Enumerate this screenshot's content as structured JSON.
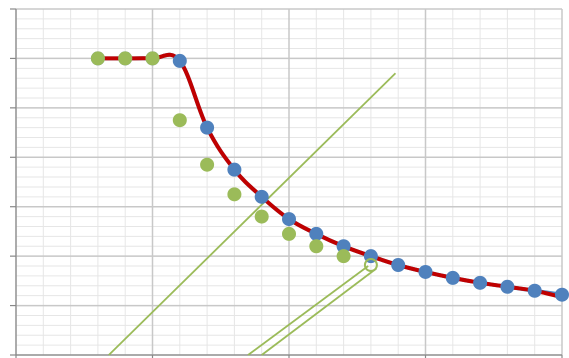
{
  "chart_data": {
    "type": "line",
    "title": "",
    "xlabel": "",
    "ylabel": "",
    "x_range": [
      0,
      20
    ],
    "y_range": [
      0,
      7
    ],
    "grid": {
      "major": true,
      "minor": true
    },
    "legend": "none",
    "tick_labels_shown": false,
    "series": [
      {
        "color": "#4f81bd",
        "style": "smooth-line-with-markers",
        "points": [
          [
            3,
            6
          ],
          [
            4,
            6
          ],
          [
            5,
            6
          ],
          [
            6,
            5.95
          ],
          [
            7,
            4.6
          ],
          [
            8,
            3.75
          ],
          [
            9,
            3.2
          ],
          [
            10,
            2.75
          ],
          [
            11,
            2.45
          ],
          [
            12,
            2.2
          ],
          [
            13,
            2.0
          ],
          [
            14,
            1.82
          ],
          [
            15,
            1.68
          ],
          [
            16,
            1.56
          ],
          [
            17,
            1.46
          ],
          [
            18,
            1.38
          ],
          [
            19,
            1.3
          ],
          [
            20,
            1.22
          ]
        ]
      },
      {
        "color": "#c00000",
        "style": "smooth-line",
        "points": [
          [
            3,
            6
          ],
          [
            4,
            6
          ],
          [
            5,
            6
          ],
          [
            6,
            5.95
          ],
          [
            7,
            4.6
          ],
          [
            8,
            3.75
          ],
          [
            9,
            3.2
          ],
          [
            10,
            2.75
          ],
          [
            11,
            2.45
          ],
          [
            12,
            2.2
          ],
          [
            13,
            2.0
          ],
          [
            14,
            1.82
          ],
          [
            15,
            1.68
          ],
          [
            16,
            1.56
          ],
          [
            17,
            1.46
          ],
          [
            18,
            1.38
          ],
          [
            19,
            1.3
          ],
          [
            20,
            1.17
          ]
        ]
      },
      {
        "color": "#9bbb59",
        "style": "markers",
        "points": [
          [
            3,
            6
          ],
          [
            4,
            6
          ],
          [
            5,
            6
          ],
          [
            6,
            4.75
          ],
          [
            7,
            3.85
          ],
          [
            8,
            3.25
          ],
          [
            9,
            2.8
          ],
          [
            10,
            2.45
          ],
          [
            11,
            2.2
          ],
          [
            12,
            2.0
          ]
        ]
      },
      {
        "color": "#9bbb59",
        "style": "hollow-marker",
        "points": [
          [
            13,
            1.82
          ]
        ]
      },
      {
        "color": "#9bbb59",
        "style": "line",
        "points": [
          [
            3.4,
            0
          ],
          [
            13.9,
            5.7
          ]
        ]
      },
      {
        "color": "#9bbb59",
        "style": "line",
        "points": [
          [
            8.5,
            0
          ],
          [
            12.9,
            1.8
          ]
        ]
      },
      {
        "color": "#9bbb59",
        "style": "line",
        "points": [
          [
            9,
            0
          ],
          [
            13.2,
            1.75
          ]
        ]
      }
    ]
  }
}
